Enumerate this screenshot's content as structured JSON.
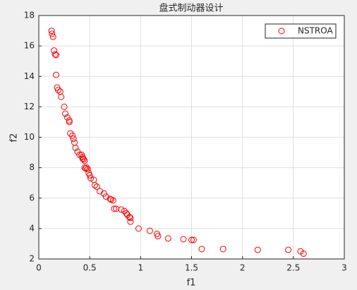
{
  "chart_data": {
    "type": "scatter",
    "title": "盘式制动器设计",
    "xlabel": "f1",
    "ylabel": "f2",
    "xlim": [
      0,
      3
    ],
    "ylim": [
      2,
      18
    ],
    "xticks": [
      0,
      0.5,
      1,
      1.5,
      2,
      2.5,
      3
    ],
    "yticks": [
      2,
      4,
      6,
      8,
      10,
      12,
      14,
      16,
      18
    ],
    "grid": true,
    "legend": "northeast",
    "series": [
      {
        "name": "NSTROA",
        "color": "#ff0000",
        "x": [
          0.125,
          0.13,
          0.14,
          0.15,
          0.16,
          0.17,
          0.17,
          0.18,
          0.19,
          0.21,
          0.22,
          0.25,
          0.26,
          0.28,
          0.3,
          0.3,
          0.31,
          0.33,
          0.34,
          0.35,
          0.36,
          0.38,
          0.4,
          0.42,
          0.43,
          0.43,
          0.44,
          0.45,
          0.45,
          0.46,
          0.47,
          0.48,
          0.49,
          0.5,
          0.51,
          0.54,
          0.55,
          0.57,
          0.6,
          0.64,
          0.66,
          0.7,
          0.71,
          0.73,
          0.74,
          0.76,
          0.81,
          0.84,
          0.86,
          0.87,
          0.89,
          0.9,
          0.9,
          0.98,
          1.09,
          1.16,
          1.17,
          1.27,
          1.42,
          1.5,
          1.52,
          1.6,
          1.81,
          2.15,
          2.45,
          2.57,
          2.6
        ],
        "values": [
          17.0,
          16.8,
          16.6,
          15.7,
          15.45,
          15.4,
          14.1,
          13.27,
          13.1,
          13.0,
          12.65,
          12.0,
          11.55,
          11.3,
          11.1,
          11.0,
          10.25,
          10.1,
          9.9,
          9.65,
          9.3,
          9.05,
          8.85,
          8.85,
          8.7,
          8.6,
          8.55,
          8.45,
          8.0,
          7.95,
          8.0,
          7.9,
          7.65,
          7.5,
          7.3,
          7.2,
          6.85,
          6.75,
          6.45,
          6.3,
          6.1,
          5.95,
          5.9,
          5.85,
          5.3,
          5.3,
          5.25,
          5.15,
          5.0,
          4.9,
          4.75,
          4.7,
          4.45,
          4.0,
          3.85,
          3.65,
          3.5,
          3.35,
          3.3,
          3.25,
          3.25,
          2.65,
          2.65,
          2.6,
          2.6,
          2.5,
          2.35
        ]
      }
    ]
  }
}
